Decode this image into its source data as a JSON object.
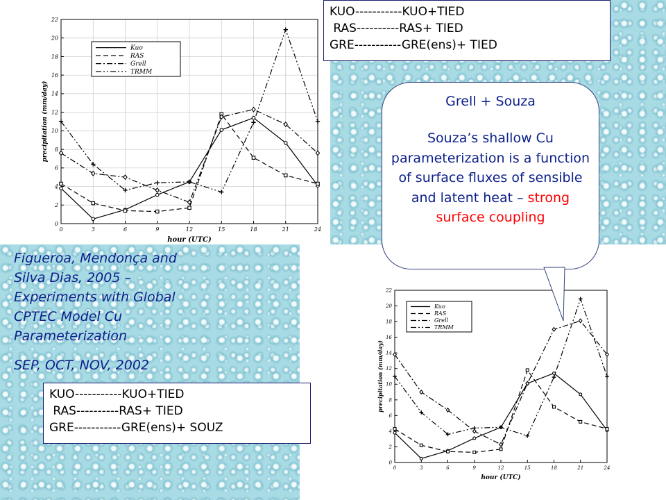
{
  "legend_top": {
    "lines": [
      "KUO-----------KUO+TIED",
      " RAS----------RAS+ TIED",
      "GRE-----------GRE(ens)+ TIED"
    ]
  },
  "legend_bottom": {
    "lines": [
      "KUO-----------KUO+TIED",
      " RAS----------RAS+ TIED",
      "GRE-----------GRE(ens)+ SOUZ"
    ]
  },
  "citation": {
    "lines": [
      "Figueroa, Mendonça and",
      "Silva Dias, 2005 –",
      "Experiments with Global",
      "CPTEC Model Cu",
      "Parameterization"
    ],
    "months": "SEP, OCT, NOV, 2002"
  },
  "callout": {
    "title": "Grell + Souza",
    "body_plain": "Souza’s shallow Cu parameterization is a function of surface fluxes of sensible and latent heat – ",
    "body_highlight": "strong surface coupling",
    "highlight_color": "#ff0000"
  },
  "colors": {
    "text_blue": "#0c1f8a",
    "background_drops": "#a9dbe4"
  },
  "chart_data": [
    {
      "type": "line",
      "xlabel": "hour (UTC)",
      "ylabel": "precipitation (mm/day)",
      "x": [
        0,
        3,
        6,
        9,
        12,
        15,
        18,
        21,
        24
      ],
      "xticks": [
        "0",
        "3",
        "6",
        "9",
        "12",
        "15",
        "18",
        "21",
        "24"
      ],
      "ylim": [
        0,
        22
      ],
      "yticks": [
        0,
        2,
        4,
        6,
        8,
        10,
        12,
        14,
        16,
        18,
        20,
        22
      ],
      "grid": true,
      "legend_position": "top-left",
      "series": [
        {
          "name": "Kuo",
          "style": "solid",
          "marker": "circle",
          "values": [
            3.8,
            0.5,
            1.5,
            3.1,
            4.5,
            10.1,
            11.4,
            8.7,
            4.1
          ]
        },
        {
          "name": "RAS",
          "style": "dashed",
          "marker": "square",
          "values": [
            4.3,
            2.2,
            1.4,
            1.3,
            1.7,
            11.8,
            7.1,
            5.2,
            4.3
          ]
        },
        {
          "name": "Grell",
          "style": "dashdot",
          "marker": "diamond",
          "values": [
            7.6,
            5.4,
            5.0,
            3.6,
            2.3,
            11.5,
            12.3,
            10.7,
            7.6
          ]
        },
        {
          "name": "TRMM",
          "style": "dashdotdot",
          "marker": "plus",
          "values": [
            11.0,
            6.4,
            3.6,
            4.4,
            4.5,
            3.4,
            10.9,
            20.9,
            11.0
          ]
        }
      ]
    },
    {
      "type": "line",
      "xlabel": "hour (UTC)",
      "ylabel": "precipitation (mm/day)",
      "x": [
        0,
        3,
        6,
        9,
        12,
        15,
        18,
        21,
        24
      ],
      "xticks": [
        "0",
        "3",
        "6",
        "9",
        "12",
        "15",
        "18",
        "21",
        "24"
      ],
      "ylim": [
        0,
        22
      ],
      "yticks": [
        0,
        2,
        4,
        6,
        8,
        10,
        12,
        14,
        16,
        18,
        20,
        22
      ],
      "grid": false,
      "legend_position": "top-left",
      "series": [
        {
          "name": "Kuo",
          "style": "solid",
          "marker": "circle",
          "values": [
            3.8,
            0.5,
            1.5,
            3.1,
            4.5,
            10.1,
            11.4,
            8.7,
            4.1
          ]
        },
        {
          "name": "RAS",
          "style": "dashed",
          "marker": "square",
          "values": [
            4.3,
            2.2,
            1.4,
            1.3,
            1.7,
            11.8,
            7.1,
            5.2,
            4.3
          ]
        },
        {
          "name": "Grell",
          "style": "dashdot",
          "marker": "diamond",
          "values": [
            13.8,
            9.0,
            6.7,
            4.0,
            2.3,
            10.1,
            17.0,
            18.1,
            13.8
          ]
        },
        {
          "name": "TRMM",
          "style": "dashdotdot",
          "marker": "plus",
          "values": [
            11.0,
            6.4,
            3.6,
            4.4,
            4.5,
            3.4,
            10.9,
            20.9,
            11.0
          ]
        }
      ]
    }
  ]
}
